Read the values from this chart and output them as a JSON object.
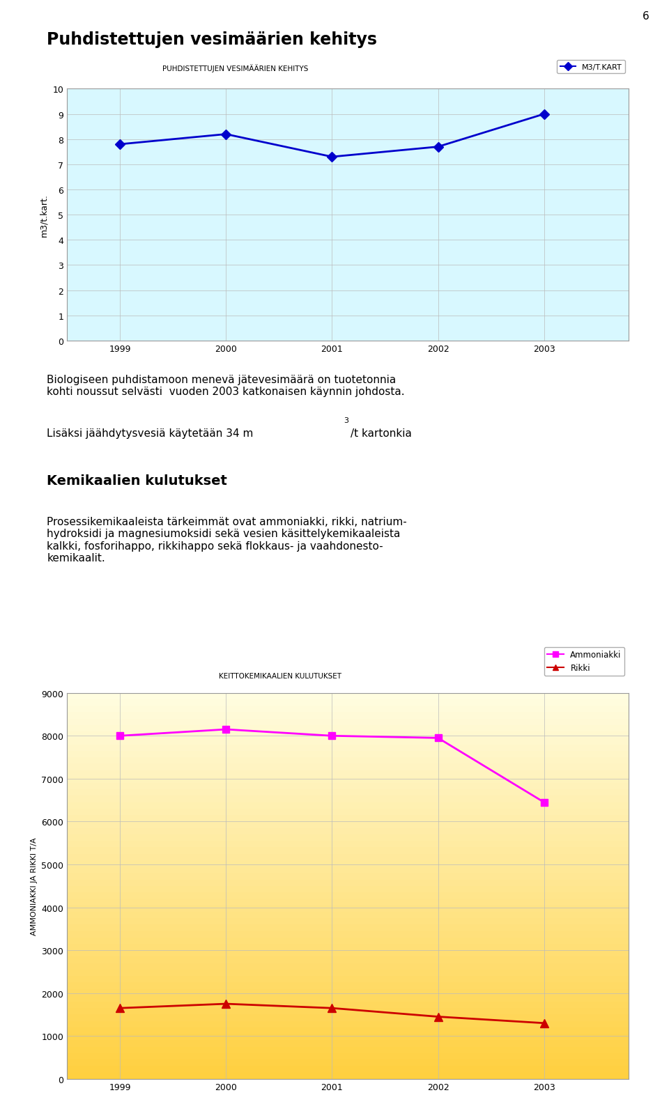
{
  "page_number": "6",
  "main_title": "Puhdistettujen vesimäärien kehitys",
  "chart1": {
    "title": "PUHDISTETTUJEN VESIMÄÄRIEN KEHITYS",
    "legend_label": "M3/T.KART",
    "years": [
      1999,
      2000,
      2001,
      2002,
      2003
    ],
    "values": [
      7.8,
      8.2,
      7.3,
      7.7,
      9.0
    ],
    "ylim": [
      0,
      10
    ],
    "yticks": [
      0,
      1,
      2,
      3,
      4,
      5,
      6,
      7,
      8,
      9,
      10
    ],
    "ylabel": "m3/t.kart.",
    "line_color": "#0000CC",
    "marker": "D",
    "bg_color": "#D8F8FF",
    "grid_color": "#BBBBBB"
  },
  "text_block1": "Biologiseen puhdistamoon menevä jätevesimäärä on tuotetonnia\nkohti noussut selvästi  vuoden 2003 katkonaisen käynnin johdosta.",
  "section_title": "Kemikaalien kulutukset",
  "text_block3": "Prosessikemikaaleista tärkeimmät ovat ammoniakki, rikki, natrium-\nhydroksidi ja magnesiumoksidi sekä vesien käsittelykemikaaleista\nkalkki, fosforihappo, rikkihappo sekä flokkaus- ja vaahdonesto-\nkemikaalit.",
  "chart2": {
    "title": "KEITTOKEMIKAALIEN KULUTUKSET",
    "years": [
      1999,
      2000,
      2001,
      2002,
      2003
    ],
    "amm_vals": [
      8000,
      8150,
      8000,
      7950,
      6450
    ],
    "rikki_vals": [
      1650,
      1750,
      1650,
      1450,
      1300
    ],
    "amm_label": "Ammoniakki",
    "rikki_label": "Rikki",
    "amm_color": "#FF00FF",
    "rikki_color": "#CC0000",
    "ylim": [
      0,
      9000
    ],
    "yticks": [
      0,
      1000,
      2000,
      3000,
      4000,
      5000,
      6000,
      7000,
      8000,
      9000
    ],
    "ylabel": "AMMONIAKKI JA RIKKI T/A",
    "bg_color_top": "#FFFDE0",
    "bg_color_bottom": "#FFD040",
    "grid_color": "#BBBBBB"
  }
}
